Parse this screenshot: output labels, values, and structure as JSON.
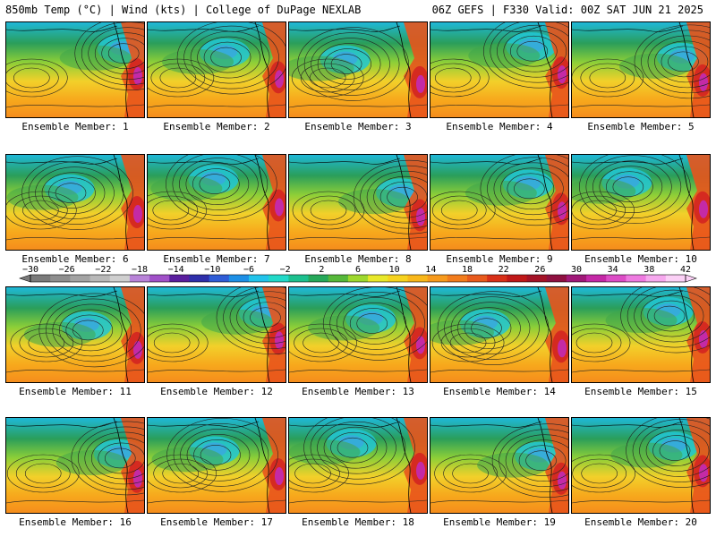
{
  "header": {
    "left": "850mb Temp (°C) | Wind (kts) | College of DuPage NEXLAB",
    "right": "06Z GEFS | F330 Valid: 00Z SAT JUN 21 2025"
  },
  "member_label_prefix": "Ensemble Member:",
  "members": [
    {
      "id": 1,
      "label": "Ensemble Member: 1"
    },
    {
      "id": 2,
      "label": "Ensemble Member: 2"
    },
    {
      "id": 3,
      "label": "Ensemble Member: 3"
    },
    {
      "id": 4,
      "label": "Ensemble Member: 4"
    },
    {
      "id": 5,
      "label": "Ensemble Member: 5"
    },
    {
      "id": 6,
      "label": "Ensemble Member: 6"
    },
    {
      "id": 7,
      "label": "Ensemble Member: 7"
    },
    {
      "id": 8,
      "label": "Ensemble Member: 8"
    },
    {
      "id": 9,
      "label": "Ensemble Member: 9"
    },
    {
      "id": 10,
      "label": "Ensemble Member: 10"
    },
    {
      "id": 11,
      "label": "Ensemble Member: 11"
    },
    {
      "id": 12,
      "label": "Ensemble Member: 12"
    },
    {
      "id": 13,
      "label": "Ensemble Member: 13"
    },
    {
      "id": 14,
      "label": "Ensemble Member: 14"
    },
    {
      "id": 15,
      "label": "Ensemble Member: 15"
    },
    {
      "id": 16,
      "label": "Ensemble Member: 16"
    },
    {
      "id": 17,
      "label": "Ensemble Member: 17"
    },
    {
      "id": 18,
      "label": "Ensemble Member: 18"
    },
    {
      "id": 19,
      "label": "Ensemble Member: 19"
    },
    {
      "id": 20,
      "label": "Ensemble Member: 20"
    }
  ],
  "colorbar": {
    "labels": [
      "−30",
      "−26",
      "−22",
      "−18",
      "−14",
      "−10",
      "−6",
      "−2",
      "2",
      "6",
      "10",
      "14",
      "18",
      "22",
      "26",
      "30",
      "34",
      "38",
      "42"
    ],
    "colors": [
      "#7a7a7a",
      "#8e8e8e",
      "#a3a3a3",
      "#b8b8b8",
      "#cfcfcf",
      "#b883d8",
      "#a050c8",
      "#5a1e9e",
      "#2e2eaa",
      "#2f5cd6",
      "#1d8fe6",
      "#22c3ea",
      "#22d9c8",
      "#1cc08e",
      "#26a85a",
      "#56b83a",
      "#9ed82e",
      "#e8e82a",
      "#f6d21e",
      "#f8b71a",
      "#f79a1c",
      "#f27c1c",
      "#e85a1c",
      "#d83018",
      "#c01818",
      "#a41226",
      "#8e1040",
      "#a01878",
      "#c428a6",
      "#dc4cc6",
      "#ee7ae0",
      "#f6a8ee",
      "#fbd0f6"
    ],
    "range": [
      -30,
      42
    ],
    "step": 2,
    "units": "°C"
  }
}
